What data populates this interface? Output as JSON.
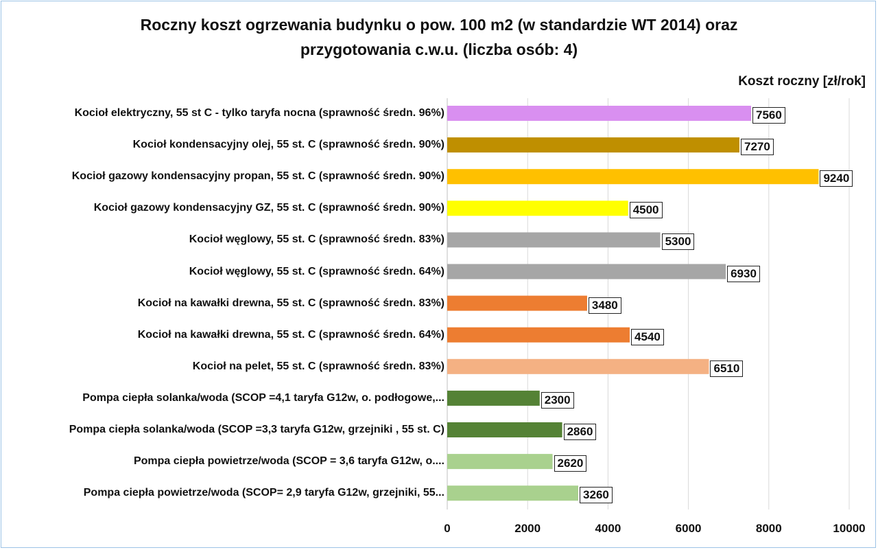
{
  "chart_data": {
    "type": "bar",
    "orientation": "horizontal",
    "title": "Roczny koszt  ogrzewania  budynku  o pow. 100 m2 (w standardzie  WT 2014) oraz przygotowania  c.w.u. (liczba osób: 4)",
    "title_lines": [
      "Roczny koszt  ogrzewania  budynku  o pow. 100 m2 (w standardzie  WT 2014) oraz",
      "przygotowania  c.w.u. (liczba osób: 4)"
    ],
    "xlabel": "Koszt roczny [zł/rok]",
    "xlim": [
      0,
      10000
    ],
    "xticks": [
      0,
      2000,
      4000,
      6000,
      8000,
      10000
    ],
    "grid": true,
    "data_labels": true,
    "categories": [
      "Kocioł  elektryczny, 55 st C - tylko taryfa nocna (sprawność średn. 96%)",
      "Kocioł  kondensacyjny olej, 55 st. C (sprawność średn. 90%)",
      "Kocioł gazowy kondensacyjny propan, 55 st. C (sprawność średn. 90%)",
      "Kocioł gazowy kondensacyjny GZ, 55 st. C (sprawność średn. 90%)",
      "Kocioł węglowy,  55 st. C (sprawność średn. 83%)",
      "Kocioł węglowy, 55 st. C (sprawność średn. 64%)",
      "Kocioł na kawałki drewna, 55 st. C (sprawność średn. 83%)",
      "Kocioł na kawałki drewna, 55 st. C (sprawność średn. 64%)",
      "Kocioł na pelet, 55 st. C (sprawność średn. 83%)",
      "Pompa ciepła solanka/woda (SCOP =4,1 taryfa G12w, o. podłogowe,...",
      "Pompa ciepła solanka/woda (SCOP =3,3 taryfa G12w, grzejniki , 55 st. C)",
      "Pompa ciepła powietrze/woda (SCOP = 3,6 taryfa G12w, o....",
      "Pompa ciepła powietrze/woda (SCOP= 2,9 taryfa G12w, grzejniki, 55..."
    ],
    "values": [
      7560,
      7270,
      9240,
      4500,
      5300,
      6930,
      3480,
      4540,
      6510,
      2300,
      2860,
      2620,
      3260
    ],
    "colors": [
      "#d98ff0",
      "#bf8f00",
      "#ffc000",
      "#ffff00",
      "#a6a6a6",
      "#a6a6a6",
      "#ed7d31",
      "#ed7d31",
      "#f4b183",
      "#548235",
      "#548235",
      "#a9d18e",
      "#a9d18e"
    ]
  }
}
